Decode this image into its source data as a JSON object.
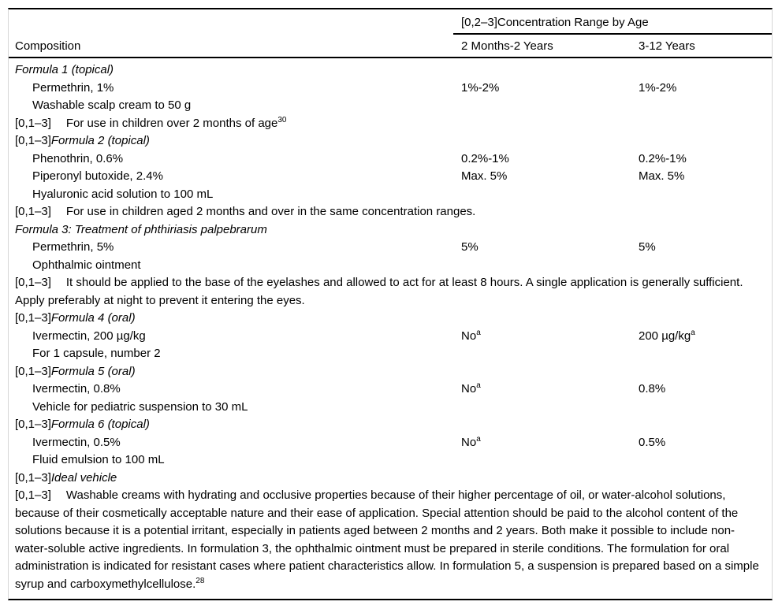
{
  "table": {
    "header": {
      "span_header": "[0,2–3]Concentration Range by Age",
      "composition": "Composition",
      "col2": "2 Months-2 Years",
      "col3": "3-12 Years"
    },
    "rows": [
      {
        "kind": "title",
        "prefix": "",
        "text": "Formula 1 (topical)"
      },
      {
        "kind": "ingredient",
        "text": "Permethrin, 1%",
        "col2": "1%-2%",
        "col3": "1%-2%"
      },
      {
        "kind": "ingredient",
        "text": "Washable scalp cream to 50 g"
      },
      {
        "kind": "note",
        "prefix": "[0,1–3]",
        "text": "For use in children over 2 months of age",
        "sup": "30"
      },
      {
        "kind": "title",
        "prefix": "[0,1–3]",
        "text": "Formula 2 (topical)"
      },
      {
        "kind": "ingredient",
        "text": "Phenothrin, 0.6%",
        "col2": "0.2%-1%",
        "col3": "0.2%-1%"
      },
      {
        "kind": "ingredient",
        "text": "Piperonyl butoxide, 2.4%",
        "col2": "Max. 5%",
        "col3": "Max. 5%"
      },
      {
        "kind": "ingredient",
        "text": "Hyaluronic acid solution to 100 mL"
      },
      {
        "kind": "note",
        "prefix": "[0,1–3]",
        "text": "For use in children aged 2 months and over in the same concentration ranges."
      },
      {
        "kind": "title",
        "prefix": "",
        "text": "Formula 3: Treatment of phthiriasis palpebrarum"
      },
      {
        "kind": "ingredient",
        "text": "Permethrin, 5%",
        "col2": "5%",
        "col3": "5%"
      },
      {
        "kind": "ingredient",
        "text": "Ophthalmic ointment"
      },
      {
        "kind": "note",
        "prefix": "[0,1–3]",
        "text": "It should be applied to the base of the eyelashes and allowed to act for at least 8 hours. A single application is generally sufficient. Apply preferably at night to prevent it entering the eyes."
      },
      {
        "kind": "title",
        "prefix": "[0,1–3]",
        "text": "Formula 4 (oral)"
      },
      {
        "kind": "ingredient",
        "text": "Ivermectin, 200 µg/kg",
        "col2": "No",
        "col2_sup": "a",
        "col3": "200 µg/kg",
        "col3_sup": "a"
      },
      {
        "kind": "ingredient",
        "text": "For 1 capsule, number 2"
      },
      {
        "kind": "title",
        "prefix": "[0,1–3]",
        "text": "Formula 5 (oral)"
      },
      {
        "kind": "ingredient",
        "text": "Ivermectin, 0.8%",
        "col2": "No",
        "col2_sup": "a",
        "col3": "0.8%"
      },
      {
        "kind": "ingredient",
        "text": "Vehicle for pediatric suspension to 30 mL"
      },
      {
        "kind": "title",
        "prefix": "[0,1–3]",
        "text": "Formula 6 (topical)"
      },
      {
        "kind": "ingredient",
        "text": "Ivermectin, 0.5%",
        "col2": "No",
        "col2_sup": "a",
        "col3": "0.5%"
      },
      {
        "kind": "ingredient",
        "text": "Fluid emulsion to 100 mL"
      },
      {
        "kind": "title",
        "prefix": "[0,1–3]",
        "text": "Ideal vehicle"
      },
      {
        "kind": "note",
        "prefix": "[0,1–3]",
        "text": "Washable creams with hydrating and occlusive properties because of their higher percentage of oil, or water-alcohol solutions, because of their cosmetically acceptable nature and their ease of application. Special attention should be paid to the alcohol content of the solutions because it is a potential irritant, especially in patients aged between 2 months and 2 years. Both make it possible to include non-water-soluble active ingredients. In formulation 3, the ophthalmic ointment must be prepared in sterile conditions. The formulation for oral administration is indicated for resistant cases where patient characteristics allow. In formulation 5, a suspension is prepared based on a simple syrup and carboxymethylcellulose.",
        "sup": "28"
      }
    ]
  },
  "colors": {
    "rule": "#000000",
    "frame_border": "#d6d6d6",
    "text": "#000000",
    "background": "#ffffff"
  }
}
